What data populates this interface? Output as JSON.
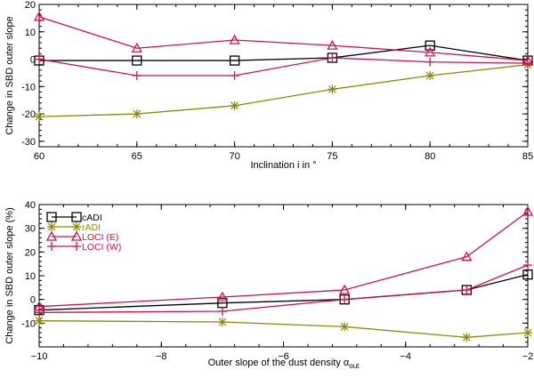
{
  "chart_data": [
    {
      "type": "line",
      "xlabel": "Inclination i in °",
      "ylabel": "Change in SBD outer slope",
      "xlim": [
        60,
        85
      ],
      "ylim": [
        -32,
        20
      ],
      "xticks": [
        60,
        65,
        70,
        75,
        80,
        85
      ],
      "yticks": [
        -30,
        -20,
        -10,
        0,
        10,
        20
      ],
      "x": [
        60,
        65,
        70,
        75,
        80,
        85
      ],
      "series": [
        {
          "name": "cADI",
          "color": "#000000",
          "marker": "square",
          "values": [
            -0.5,
            -0.5,
            -0.5,
            0.5,
            5,
            -0.5
          ]
        },
        {
          "name": "rADI",
          "color": "#8b8b00",
          "marker": "star",
          "values": [
            -21,
            -20,
            -17,
            -11,
            -6,
            -2
          ]
        },
        {
          "name": "LOCI (E)",
          "color": "#d4114a",
          "marker": "triangle",
          "values": [
            15.5,
            4,
            7,
            5,
            2.5,
            -0.5
          ]
        },
        {
          "name": "LOCI (W)",
          "color": "#d4114a",
          "marker": "plus",
          "values": [
            0,
            -6,
            -6,
            0.5,
            -1,
            -1.5
          ]
        }
      ]
    },
    {
      "type": "line",
      "xlabel": "Outer slope of the dust density α",
      "xlabel_sub": "out",
      "ylabel": "Change in SBD outer slope (%)",
      "xlim": [
        -10,
        -2
      ],
      "ylim": [
        -20,
        40
      ],
      "xticks": [
        -10,
        -8,
        -6,
        -4,
        -2
      ],
      "xtick_labels": [
        "−10",
        "−8",
        "−6",
        "−4",
        "−2"
      ],
      "yticks": [
        -10,
        0,
        10,
        20,
        30,
        40
      ],
      "x": [
        -10,
        -7,
        -5,
        -3,
        -2
      ],
      "legend_position": "top-left",
      "series": [
        {
          "name": "cADI",
          "color": "#000000",
          "marker": "square",
          "values": [
            -4.5,
            -1.5,
            0,
            4,
            10.5
          ]
        },
        {
          "name": "rADI",
          "color": "#8b8b00",
          "marker": "star",
          "values": [
            -9,
            -9.5,
            -11.5,
            -16,
            -14
          ]
        },
        {
          "name": "LOCI (E)",
          "color": "#d4114a",
          "marker": "triangle",
          "values": [
            -3,
            1,
            4,
            18,
            37
          ]
        },
        {
          "name": "LOCI (W)",
          "color": "#d4114a",
          "marker": "plus",
          "values": [
            -5.5,
            -5,
            0,
            4,
            14.5
          ]
        }
      ]
    }
  ]
}
